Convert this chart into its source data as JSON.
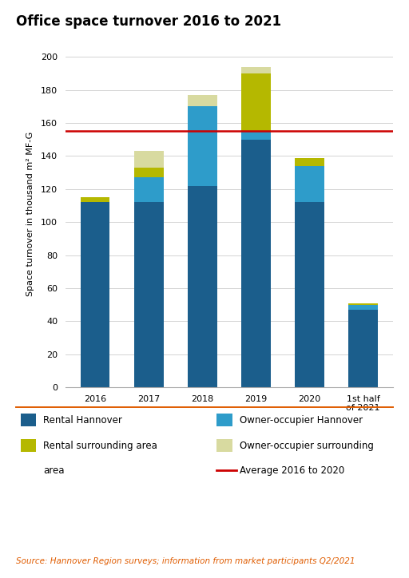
{
  "title": "Office space turnover 2016 to 2021",
  "ylabel": "Space turnover in thousand m² MF-G",
  "source": "Source: Hannover Region surveys; information from market participants Q2/2021",
  "categories": [
    "2016",
    "2017",
    "2018",
    "2019",
    "2020",
    "1st half\nof 2021"
  ],
  "rental_hannover": [
    112,
    112,
    122,
    150,
    112,
    47
  ],
  "owner_hannover": [
    0,
    15,
    48,
    5,
    22,
    3
  ],
  "rental_surrounding": [
    3,
    6,
    0,
    35,
    5,
    1
  ],
  "owner_surrounding_pale": [
    0,
    10,
    7,
    4,
    0,
    0
  ],
  "average_line": 155,
  "ylim": [
    0,
    210
  ],
  "yticks": [
    0,
    20,
    40,
    60,
    80,
    100,
    120,
    140,
    160,
    180,
    200
  ],
  "color_rental_hannover": "#1b5e8c",
  "color_owner_hannover": "#2e9cca",
  "color_rental_surrounding": "#b5b800",
  "color_owner_surrounding_pale": "#d8daa0",
  "color_average": "#cc0000",
  "color_source": "#e05c00",
  "color_separator": "#e05c00",
  "background_color": "#ffffff",
  "bar_width": 0.55,
  "title_fontsize": 12,
  "axis_fontsize": 8,
  "legend_fontsize": 8.5,
  "source_fontsize": 7.5
}
